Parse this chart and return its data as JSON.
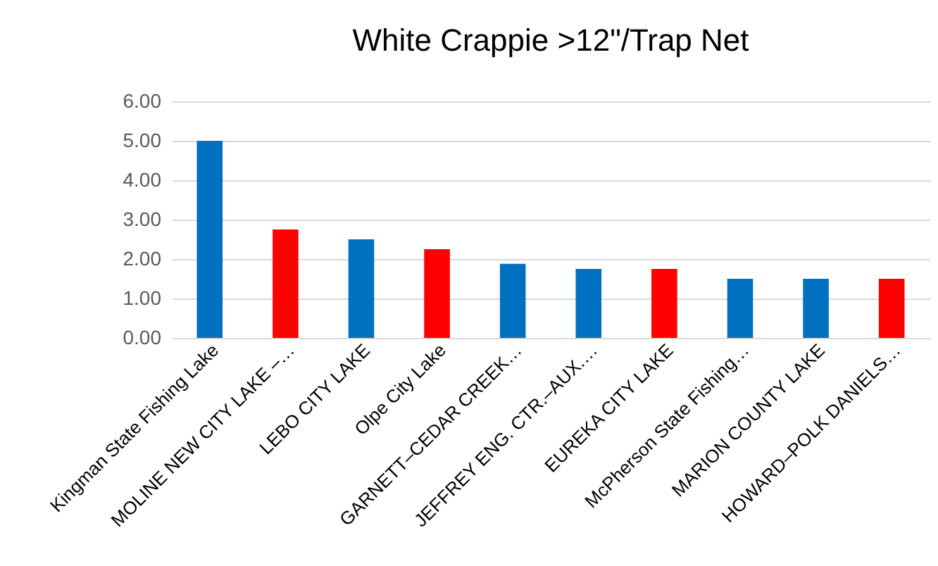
{
  "chart_data": {
    "type": "bar",
    "title": "White Crappie >12\"/Trap Net",
    "categories": [
      "Kingman State Fishing Lake",
      "MOLINE NEW CITY LAKE –…",
      "LEBO CITY LAKE",
      "Olpe City Lake",
      "GARNETT–CEDAR CREEK…",
      "JEFFREY ENG. CTR.–AUX.…",
      "EUREKA CITY LAKE",
      "McPherson State Fishing…",
      "MARION COUNTY LAKE",
      "HOWARD–POLK DANIELS…"
    ],
    "values": [
      5.0,
      2.75,
      2.5,
      2.25,
      1.88,
      1.75,
      1.75,
      1.5,
      1.5,
      1.5
    ],
    "colors": [
      "#0070c0",
      "#ff0000",
      "#0070c0",
      "#ff0000",
      "#0070c0",
      "#0070c0",
      "#ff0000",
      "#0070c0",
      "#0070c0",
      "#ff0000"
    ],
    "ylim": [
      0,
      6
    ],
    "yticks": [
      {
        "value": 0,
        "label": "0.00"
      },
      {
        "value": 1,
        "label": "1.00"
      },
      {
        "value": 2,
        "label": "2.00"
      },
      {
        "value": 3,
        "label": "3.00"
      },
      {
        "value": 4,
        "label": "4.00"
      },
      {
        "value": 5,
        "label": "5.00"
      },
      {
        "value": 6,
        "label": "6.00"
      }
    ],
    "grid": "y"
  }
}
